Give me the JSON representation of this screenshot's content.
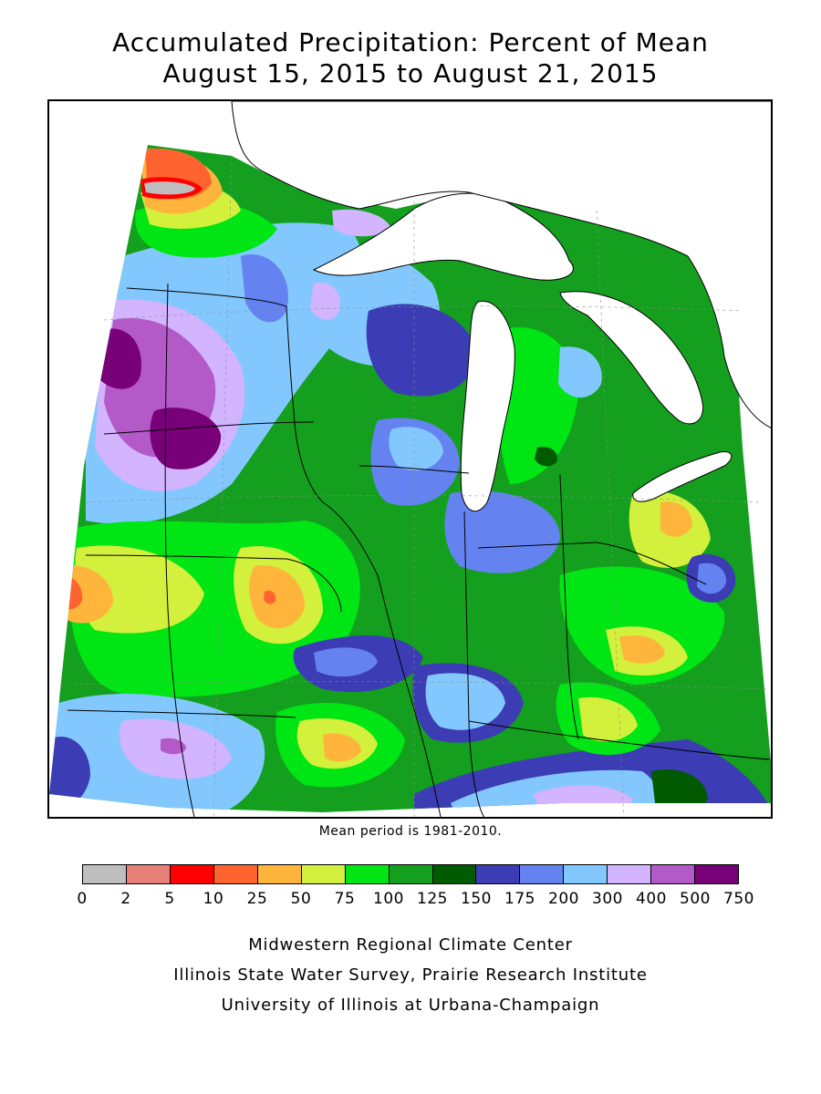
{
  "title": {
    "line1": "Accumulated Precipitation: Percent of Mean",
    "line2": "August 15, 2015 to August 21, 2015"
  },
  "map": {
    "region": "Upper Midwest / Great Lakes",
    "field": "precipitation percent of mean"
  },
  "mean_note": "Mean period is 1981-2010.",
  "legend": {
    "ticks": [
      "0",
      "2",
      "5",
      "10",
      "25",
      "50",
      "75",
      "100",
      "125",
      "150",
      "175",
      "200",
      "300",
      "400",
      "500",
      "750"
    ],
    "colors": [
      "#bebebe",
      "#e8807a",
      "#ff0000",
      "#ff6430",
      "#ffb43c",
      "#d2f03c",
      "#00e614",
      "#14a01e",
      "#005a00",
      "#3c3cb4",
      "#6482f0",
      "#82c8ff",
      "#d2b4ff",
      "#b45ac8",
      "#780078"
    ]
  },
  "credits": [
    "Midwestern Regional Climate Center",
    "Illinois State Water Survey, Prairie Research Institute",
    "University of Illinois at Urbana-Champaign"
  ]
}
